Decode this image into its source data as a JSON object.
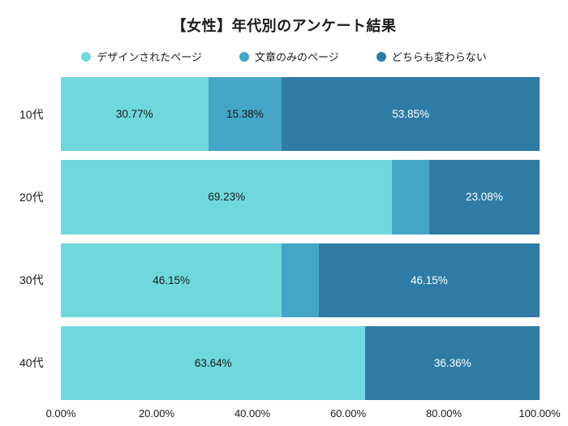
{
  "title": "【女性】年代別のアンケート結果",
  "chart_data": {
    "type": "bar",
    "orientation": "horizontal",
    "stacked": true,
    "title": "【女性】年代別のアンケート結果",
    "legend_position": "top",
    "grid": false,
    "xlim": [
      0,
      100
    ],
    "x_ticks": [
      "0.00%",
      "20.00%",
      "40.00%",
      "60.00%",
      "80.00%",
      "100.00%"
    ],
    "categories": [
      "10代",
      "20代",
      "30代",
      "40代"
    ],
    "series": [
      {
        "name": "デザインされたページ",
        "color": "#6FD8DD",
        "label_color": "#1a1a1a",
        "values": [
          30.77,
          69.23,
          46.15,
          63.64
        ]
      },
      {
        "name": "文章のみのページ",
        "color": "#45A5C7",
        "label_color": "#1a1a1a",
        "values": [
          15.38,
          7.69,
          7.7,
          0
        ]
      },
      {
        "name": "どちらも変わらない",
        "color": "#2E7CA5",
        "label_color": "#ffffff",
        "values": [
          53.85,
          23.08,
          46.15,
          36.36
        ]
      }
    ],
    "segment_labels": [
      [
        "30.77%",
        "15.38%",
        "53.85%"
      ],
      [
        "69.23%",
        "",
        "23.08%"
      ],
      [
        "46.15%",
        "",
        "46.15%"
      ],
      [
        "63.64%",
        "",
        "36.36%"
      ]
    ]
  }
}
